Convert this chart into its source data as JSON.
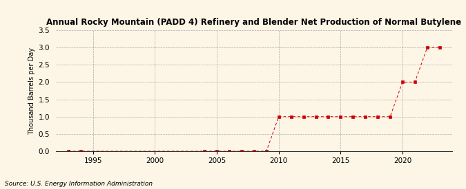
{
  "title": "Annual Rocky Mountain (PADD 4) Refinery and Blender Net Production of Normal Butylene",
  "ylabel": "Thousand Barrels per Day",
  "source": "Source: U.S. Energy Information Administration",
  "background_color": "#fdf5e6",
  "line_color": "#cc0000",
  "grid_color": "#aaaaaa",
  "xlim": [
    1992,
    2024
  ],
  "ylim": [
    0,
    3.5
  ],
  "yticks": [
    0.0,
    0.5,
    1.0,
    1.5,
    2.0,
    2.5,
    3.0,
    3.5
  ],
  "xticks": [
    1995,
    2000,
    2005,
    2010,
    2015,
    2020
  ],
  "years": [
    1993,
    1994,
    2004,
    2005,
    2006,
    2007,
    2008,
    2009,
    2010,
    2011,
    2012,
    2013,
    2014,
    2015,
    2016,
    2017,
    2018,
    2019,
    2020,
    2021,
    2022,
    2023
  ],
  "values": [
    0,
    0,
    0,
    0,
    0,
    0,
    0,
    0,
    1,
    1,
    1,
    1,
    1,
    1,
    1,
    1,
    1,
    1,
    2,
    2,
    3,
    3
  ]
}
